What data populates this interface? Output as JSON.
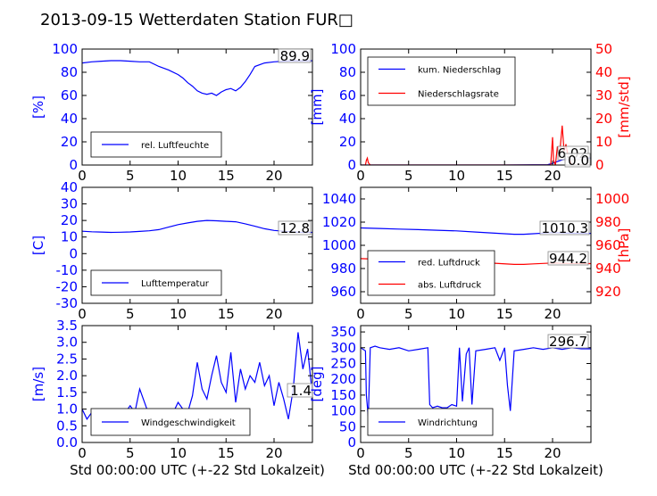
{
  "title": "2013-09-15 Wetterdaten Station FUR□",
  "x_label": "Std 00:00:00 UTC (+-22 Std Lokalzeit)",
  "chart_data": [
    {
      "type": "line",
      "title": "",
      "xlabel": "",
      "xlim": [
        0,
        24
      ],
      "xticks": [
        0,
        5,
        10,
        15,
        20
      ],
      "ylabel": "[%]",
      "ylim": [
        0,
        100
      ],
      "yticks": [
        0,
        20,
        40,
        60,
        80,
        100
      ],
      "grid": false,
      "legend": "lower-left",
      "series": [
        {
          "name": "rel. Luftfeuchte",
          "color": "#0000ff",
          "x": [
            0,
            1,
            2,
            3,
            4,
            5,
            6,
            7,
            8,
            9,
            10,
            10.5,
            11,
            11.5,
            12,
            12.5,
            13,
            13.5,
            14,
            14.5,
            15,
            15.5,
            16,
            16.5,
            17,
            17.5,
            18,
            19,
            20,
            21,
            22,
            23,
            24
          ],
          "values": [
            88,
            89,
            89.5,
            90,
            90,
            89.5,
            89,
            89,
            85,
            82,
            78,
            75,
            71,
            68,
            64,
            62,
            61,
            62,
            60,
            63,
            65,
            66,
            64,
            67,
            72,
            78,
            85,
            88,
            89,
            89.5,
            90,
            89.9,
            89.9
          ]
        }
      ],
      "annotations": [
        "89.9"
      ]
    },
    {
      "type": "line",
      "title": "",
      "xlabel": "",
      "xlim": [
        0,
        24
      ],
      "xticks": [
        0,
        5,
        10,
        15,
        20
      ],
      "ylabel": "[mm]",
      "ylim": [
        0,
        100
      ],
      "yticks": [
        0,
        20,
        40,
        60,
        80,
        100
      ],
      "y2label": "[mm/std]",
      "y2lim": [
        0,
        50
      ],
      "y2ticks": [
        0,
        10,
        20,
        30,
        40,
        50
      ],
      "grid": false,
      "legend": "top-left",
      "series": [
        {
          "name": "kum. Niederschlag",
          "color": "#0000ff",
          "axis": "left",
          "x": [
            0,
            5,
            10,
            15,
            19.5,
            20,
            20.5,
            21,
            21.5,
            22,
            24
          ],
          "values": [
            0,
            0,
            0,
            0,
            0.3,
            1.5,
            3,
            4.5,
            5.5,
            6,
            6.02
          ]
        },
        {
          "name": "Niederschlagsrate",
          "color": "#ff0000",
          "axis": "right",
          "x": [
            0,
            0.5,
            0.6,
            0.7,
            0.8,
            1,
            5,
            10,
            15,
            19.8,
            20,
            20.1,
            20.3,
            20.5,
            20.7,
            21,
            21.2,
            21.4,
            21.6,
            22,
            24
          ],
          "values": [
            0,
            0,
            2,
            3,
            1,
            0,
            0,
            0,
            0,
            0,
            12,
            2,
            0,
            8,
            3,
            17,
            6,
            9,
            4,
            0,
            0
          ]
        }
      ],
      "annotations": [
        "6.02",
        "0.0"
      ]
    },
    {
      "type": "line",
      "title": "",
      "xlabel": "",
      "xlim": [
        0,
        24
      ],
      "xticks": [
        0,
        5,
        10,
        15,
        20
      ],
      "ylabel": "[C]",
      "ylim": [
        -30,
        40
      ],
      "yticks": [
        -30,
        -20,
        -10,
        0,
        10,
        20,
        30,
        40
      ],
      "grid": false,
      "legend": "lower-left",
      "series": [
        {
          "name": "Lufttemperatur",
          "color": "#0000ff",
          "x": [
            0,
            1,
            2,
            3,
            4,
            5,
            6,
            7,
            8,
            9,
            10,
            11,
            12,
            13,
            14,
            15,
            16,
            17,
            18,
            19,
            20,
            21,
            22,
            23,
            24
          ],
          "values": [
            13.5,
            13.2,
            13.0,
            12.8,
            12.9,
            13.1,
            13.4,
            13.8,
            14.5,
            16.0,
            17.5,
            18.5,
            19.5,
            20.0,
            19.8,
            19.5,
            19.2,
            18.0,
            16.5,
            15.0,
            14.0,
            13.5,
            13.0,
            12.8,
            12.8
          ]
        }
      ],
      "annotations": [
        "12.8"
      ]
    },
    {
      "type": "line",
      "title": "",
      "xlabel": "",
      "xlim": [
        0,
        24
      ],
      "xticks": [
        0,
        5,
        10,
        15,
        20
      ],
      "ylabel": "",
      "ylim": [
        950,
        1050
      ],
      "yticks": [
        960,
        980,
        1000,
        1020,
        1040
      ],
      "y2label": "[hPa]",
      "y2lim": [
        910,
        1010
      ],
      "y2ticks": [
        920,
        940,
        960,
        980,
        1000
      ],
      "grid": false,
      "legend": "lower-left",
      "series": [
        {
          "name": "red. Luftdruck",
          "color": "#0000ff",
          "axis": "left",
          "x": [
            0,
            2,
            4,
            6,
            8,
            10,
            12,
            14,
            16,
            17,
            18,
            20,
            22,
            24
          ],
          "values": [
            1015,
            1014.5,
            1014,
            1013.5,
            1013,
            1012.5,
            1011.5,
            1010.5,
            1009.5,
            1009.5,
            1010,
            1011,
            1010.5,
            1010.3
          ]
        },
        {
          "name": "abs. Luftdruck",
          "color": "#ff0000",
          "axis": "right",
          "x": [
            0,
            2,
            4,
            6,
            8,
            10,
            12,
            14,
            16,
            17,
            18,
            20,
            22,
            24
          ],
          "values": [
            948.5,
            948,
            947.5,
            947,
            946.5,
            946,
            945.5,
            944.5,
            943.5,
            943.5,
            944,
            944.8,
            944.4,
            944.2
          ]
        }
      ],
      "annotations": [
        "1010.3",
        "944.2"
      ]
    },
    {
      "type": "line",
      "title": "",
      "xlabel": "Std 00:00:00 UTC (+-22 Std Lokalzeit)",
      "xlim": [
        0,
        24
      ],
      "xticks": [
        0,
        5,
        10,
        15,
        20
      ],
      "ylabel": "[m/s]",
      "ylim": [
        0,
        3.5
      ],
      "yticks": [
        0.0,
        0.5,
        1.0,
        1.5,
        2.0,
        2.5,
        3.0,
        3.5
      ],
      "grid": false,
      "legend": "lower-left",
      "series": [
        {
          "name": "Windgeschwindigkeit",
          "color": "#0000ff",
          "x": [
            0,
            0.5,
            1,
            1.5,
            2,
            2.5,
            3,
            3.5,
            4,
            4.5,
            5,
            5.5,
            6,
            6.5,
            7,
            7.5,
            8,
            8.5,
            9,
            9.5,
            10,
            10.5,
            11,
            11.5,
            12,
            12.5,
            13,
            13.5,
            14,
            14.5,
            15,
            15.5,
            16,
            16.5,
            17,
            17.5,
            18,
            18.5,
            19,
            19.5,
            20,
            20.5,
            21,
            21.5,
            22,
            22.5,
            23,
            23.5,
            24
          ],
          "values": [
            1.0,
            0.7,
            0.9,
            0.6,
            0.8,
            0.5,
            0.7,
            0.6,
            0.8,
            0.9,
            1.1,
            0.9,
            1.6,
            1.2,
            0.8,
            0.7,
            0.9,
            1.0,
            0.7,
            0.9,
            1.2,
            1.0,
            0.9,
            1.4,
            2.4,
            1.6,
            1.3,
            2.0,
            2.6,
            1.8,
            1.5,
            2.7,
            1.2,
            2.2,
            1.6,
            2.0,
            1.8,
            2.4,
            1.7,
            2.0,
            1.1,
            1.8,
            1.3,
            0.7,
            1.6,
            3.3,
            2.2,
            2.8,
            1.4
          ]
        }
      ],
      "annotations": [
        "1.4"
      ]
    },
    {
      "type": "line",
      "title": "",
      "xlabel": "Std 00:00:00 UTC (+-22 Std Lokalzeit)",
      "xlim": [
        0,
        24
      ],
      "xticks": [
        0,
        5,
        10,
        15,
        20
      ],
      "ylabel": "[deg]",
      "ylim": [
        0,
        370
      ],
      "yticks": [
        0,
        50,
        100,
        150,
        200,
        250,
        300,
        350
      ],
      "grid": false,
      "legend": "lower-left",
      "series": [
        {
          "name": "Windrichtung",
          "color": "#0000ff",
          "x": [
            0,
            0.5,
            0.6,
            0.8,
            1,
            1.5,
            2,
            3,
            4,
            5,
            6,
            7,
            7.2,
            7.5,
            8,
            8.5,
            9,
            9.5,
            10,
            10.3,
            10.6,
            11,
            11.3,
            11.6,
            12,
            13,
            14,
            14.5,
            15,
            15.3,
            15.6,
            16,
            17,
            18,
            19,
            20,
            21,
            22,
            23,
            24
          ],
          "values": [
            300,
            290,
            150,
            80,
            300,
            305,
            300,
            295,
            300,
            290,
            295,
            300,
            120,
            110,
            115,
            110,
            110,
            120,
            115,
            300,
            130,
            280,
            300,
            120,
            290,
            295,
            300,
            260,
            300,
            180,
            100,
            290,
            295,
            300,
            295,
            300,
            295,
            300,
            296.7,
            296.7
          ]
        }
      ],
      "annotations": [
        "296.7"
      ]
    }
  ]
}
